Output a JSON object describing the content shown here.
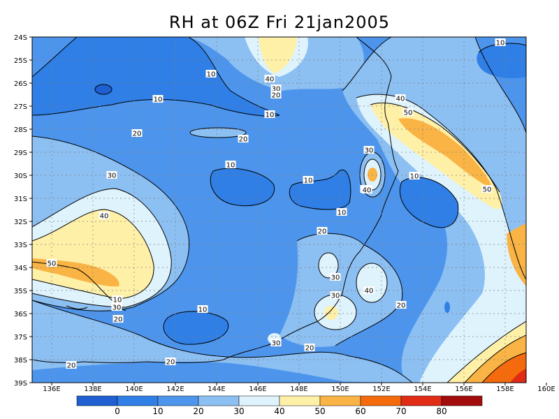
{
  "title": "RH at 06Z Fri 21jan2005",
  "lat_labels": [
    "24S",
    "25S",
    "26S",
    "27S",
    "28S",
    "29S",
    "30S",
    "31S",
    "32S",
    "33S",
    "34S",
    "35S",
    "36S",
    "37S",
    "38S",
    "39S"
  ],
  "lon_labels": [
    "136E",
    "138E",
    "140E",
    "142E",
    "144E",
    "146E",
    "148E",
    "150E",
    "152E",
    "154E",
    "156E",
    "158E",
    "160E"
  ],
  "contour_labels": [
    {
      "text": "10"
    },
    {
      "text": "10"
    },
    {
      "text": "10"
    },
    {
      "text": "10"
    },
    {
      "text": "20"
    },
    {
      "text": "20"
    },
    {
      "text": "30"
    },
    {
      "text": "40"
    },
    {
      "text": "50"
    },
    {
      "text": "40"
    },
    {
      "text": "30"
    },
    {
      "text": "20"
    },
    {
      "text": "10"
    },
    {
      "text": "10"
    },
    {
      "text": "40"
    },
    {
      "text": "30"
    },
    {
      "text": "30"
    },
    {
      "text": "40"
    },
    {
      "text": "50"
    },
    {
      "text": "10"
    },
    {
      "text": "10"
    },
    {
      "text": "10"
    },
    {
      "text": "20"
    },
    {
      "text": "30"
    },
    {
      "text": "40"
    },
    {
      "text": "30"
    },
    {
      "text": "30"
    },
    {
      "text": "20"
    },
    {
      "text": "50"
    },
    {
      "text": "20"
    },
    {
      "text": "30"
    },
    {
      "text": "20"
    },
    {
      "text": "20"
    },
    {
      "text": "20"
    },
    {
      "text": "10"
    }
  ],
  "colorbar": {
    "labels": [
      "0",
      "10",
      "20",
      "30",
      "40",
      "50",
      "60",
      "70",
      "80"
    ],
    "colors": [
      "#1f5fd1",
      "#2f7fe6",
      "#4d95ec",
      "#8cbff2",
      "#dff3fd",
      "#fff0a8",
      "#f9b445",
      "#f56a0d",
      "#e02b15",
      "#a30c0c"
    ]
  }
}
